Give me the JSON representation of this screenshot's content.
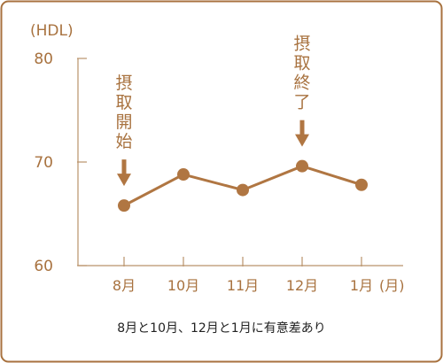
{
  "colors": {
    "frame": "#a8723f",
    "series": "#b07642",
    "axis": "#b9926a",
    "text": "#a8723f",
    "caption": "#222222"
  },
  "chart_data": {
    "type": "line",
    "unit_label": "(HDL)",
    "x_unit_label": "(月)",
    "categories": [
      "8月",
      "10月",
      "11月",
      "12月",
      "1月"
    ],
    "series": [
      {
        "values": [
          65.8,
          68.8,
          67.3,
          69.6,
          67.8
        ]
      }
    ],
    "ylim": [
      60,
      80
    ],
    "yticks": [
      60,
      70,
      80
    ],
    "grid": false,
    "annotations": [
      {
        "text": "摂取開始",
        "category": "8月",
        "marker": "down-arrow"
      },
      {
        "text": "摂取終了",
        "category": "12月",
        "marker": "down-arrow"
      }
    ],
    "caption": "8月と10月、12月と1月に有意差あり"
  }
}
